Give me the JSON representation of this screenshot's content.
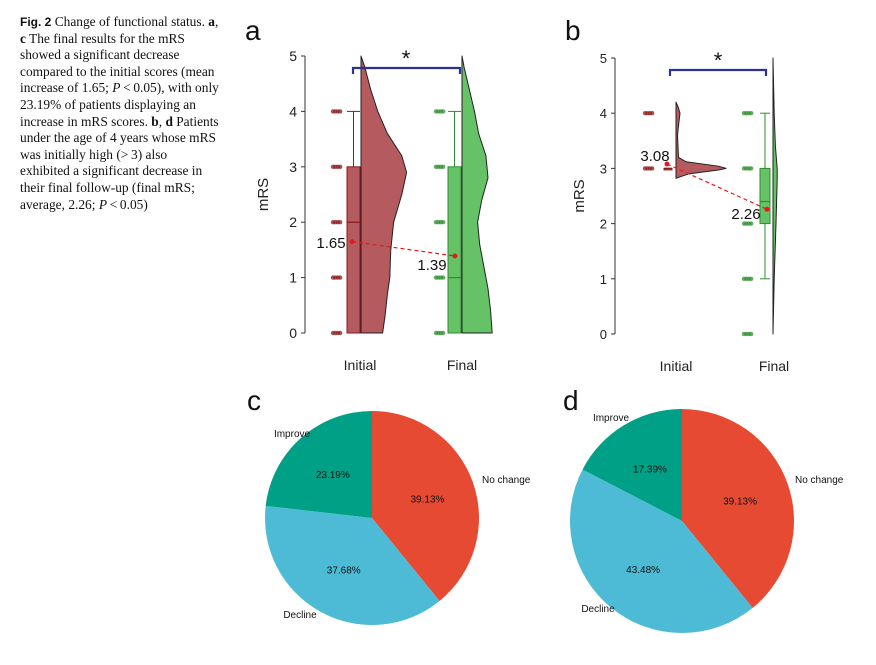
{
  "caption": {
    "fig_label": "Fig. 2",
    "t1": "  Change of functional status. ",
    "t2": "a",
    "t3": ", ",
    "t4": "c",
    "t5": " The final results for the mRS showed a significant decrease compared to the initial scores (mean increase of 1.65; ",
    "t6": "P",
    "t7": " < 0.05), with only 23.19% of patients displaying an increase in mRS scores. ",
    "t8": "b",
    "t9": ", ",
    "t10": "d",
    "t11": " Patients under the age of 4 years whose mRS was initially high (> 3) also exhibited a significant decrease in their final follow-up (final mRS; average, 2.26; ",
    "t12": "P",
    "t13": " < 0.05)"
  },
  "colors": {
    "initial_fill": "#b55a5e",
    "initial_dark": "#8b1a1a",
    "final_fill": "#66c266",
    "final_dark": "#2f8f2f",
    "bracket": "#2e3192",
    "mean_line": "#e31a1c",
    "pie_no_change": "#e64a33",
    "pie_decline": "#4dbbd5",
    "pie_improve": "#00a087"
  },
  "chart_data": [
    {
      "panel": "a",
      "type": "raincloud",
      "ylabel": "mRS",
      "ylim": [
        0,
        5
      ],
      "yticks": [
        "0",
        "1",
        "2",
        "3",
        "4",
        "5"
      ],
      "categories": [
        "Initial",
        "Final"
      ],
      "significance": "*",
      "box": [
        {
          "q1": 0,
          "median": 2,
          "q3": 3,
          "whisker_low": 0,
          "whisker_high": 4
        },
        {
          "q1": 0,
          "median": 1,
          "q3": 3,
          "whisker_low": 0,
          "whisker_high": 4
        }
      ],
      "means": [
        1.65,
        1.39
      ],
      "mean_labels": [
        "1.65",
        "1.39"
      ],
      "points": [
        [
          0,
          1,
          2,
          3,
          4
        ],
        [
          0,
          1,
          2,
          3,
          4
        ]
      ],
      "density": [
        [
          [
            0,
            0.45
          ],
          [
            0.3,
            0.5
          ],
          [
            0.7,
            0.55
          ],
          [
            1.0,
            0.6
          ],
          [
            1.5,
            0.62
          ],
          [
            2.0,
            0.68
          ],
          [
            2.5,
            0.85
          ],
          [
            2.9,
            0.95
          ],
          [
            3.2,
            0.85
          ],
          [
            3.6,
            0.55
          ],
          [
            4.0,
            0.35
          ],
          [
            4.4,
            0.2
          ],
          [
            4.8,
            0.08
          ],
          [
            5.0,
            0.0
          ]
        ],
        [
          [
            0,
            0.58
          ],
          [
            0.4,
            0.55
          ],
          [
            0.8,
            0.5
          ],
          [
            1.2,
            0.42
          ],
          [
            1.6,
            0.34
          ],
          [
            2.0,
            0.3
          ],
          [
            2.4,
            0.38
          ],
          [
            2.8,
            0.5
          ],
          [
            3.2,
            0.46
          ],
          [
            3.6,
            0.32
          ],
          [
            4.0,
            0.24
          ],
          [
            4.4,
            0.14
          ],
          [
            4.8,
            0.04
          ],
          [
            5.0,
            0.0
          ]
        ]
      ]
    },
    {
      "panel": "b",
      "type": "raincloud",
      "ylabel": "mRS",
      "ylim": [
        0,
        5
      ],
      "yticks": [
        "0",
        "1",
        "2",
        "3",
        "4",
        "5"
      ],
      "categories": [
        "Initial",
        "Final"
      ],
      "significance": "*",
      "box": [
        {
          "q1": 3,
          "median": 3,
          "q3": 3,
          "whisker_low": 3,
          "whisker_high": 3
        },
        {
          "q1": 2,
          "median": 2.4,
          "q3": 3,
          "whisker_low": 1,
          "whisker_high": 4
        }
      ],
      "means": [
        3.08,
        2.26
      ],
      "mean_labels": [
        "3.08",
        "2.26"
      ],
      "points": [
        [
          3,
          4
        ],
        [
          0,
          1,
          2,
          3,
          4
        ]
      ],
      "density": [
        [
          [
            2.82,
            0.0
          ],
          [
            2.9,
            0.25
          ],
          [
            2.97,
            0.85
          ],
          [
            3.0,
            1.0
          ],
          [
            3.04,
            0.85
          ],
          [
            3.12,
            0.2
          ],
          [
            3.2,
            0.05
          ],
          [
            3.6,
            0.03
          ],
          [
            3.85,
            0.06
          ],
          [
            4.0,
            0.08
          ],
          [
            4.12,
            0.04
          ],
          [
            4.2,
            0.0
          ]
        ],
        [
          [
            0,
            0.0
          ],
          [
            1.0,
            0.02
          ],
          [
            2.0,
            0.05
          ],
          [
            2.4,
            0.06
          ],
          [
            2.8,
            0.07
          ],
          [
            3.0,
            0.07
          ],
          [
            3.4,
            0.04
          ],
          [
            4.0,
            0.02
          ],
          [
            5.0,
            0.0
          ]
        ]
      ]
    },
    {
      "panel": "c",
      "type": "pie",
      "labels": [
        "No change",
        "Decline",
        "Improve"
      ],
      "values": [
        39.13,
        37.68,
        23.19
      ],
      "value_labels": [
        "39.13%",
        "37.68%",
        "23.19%"
      ]
    },
    {
      "panel": "d",
      "type": "pie",
      "labels": [
        "No change",
        "Decline",
        "Improve"
      ],
      "values": [
        39.13,
        43.48,
        17.39
      ],
      "value_labels": [
        "39.13%",
        "43.48%",
        "17.39%"
      ]
    }
  ]
}
